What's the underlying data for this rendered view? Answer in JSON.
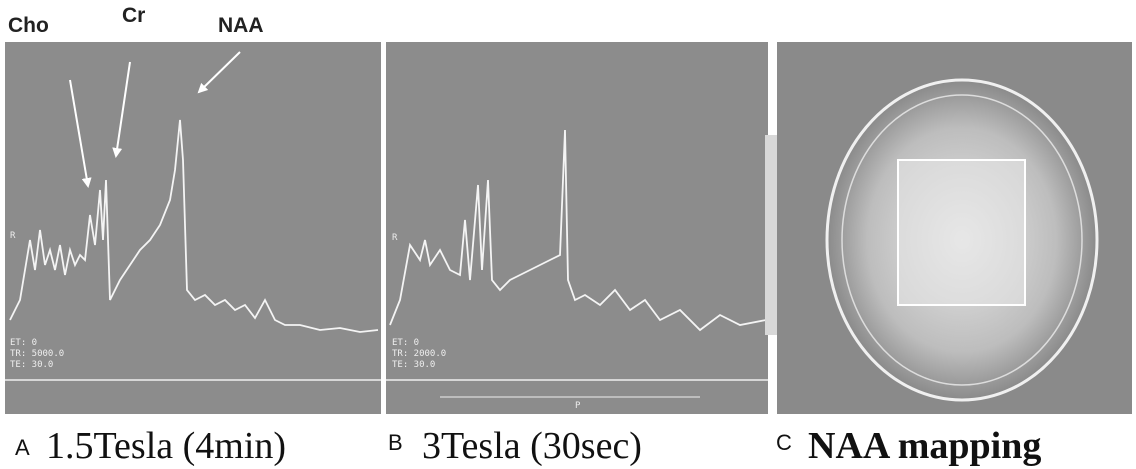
{
  "top_labels": [
    "Cho",
    "Cr",
    "NAA"
  ],
  "panels": [
    {
      "letter": "A",
      "caption": "1.5Tesla (4min)",
      "overlay": [
        "R",
        "ET: 0",
        "TR: 5000.0",
        "TE: 30.0"
      ]
    },
    {
      "letter": "B",
      "caption": "3Tesla (30sec)",
      "overlay": [
        "R",
        "ET: 0",
        "TR: 2000.0",
        "TE: 30.0",
        "P"
      ]
    },
    {
      "letter": "C",
      "caption": "NAA mapping"
    }
  ]
}
